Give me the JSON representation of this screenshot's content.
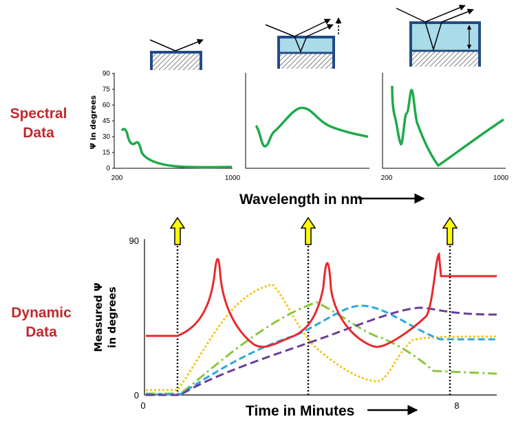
{
  "labels": {
    "spectral_line1": "Spectral",
    "spectral_line2": "Data",
    "dynamic_line1": "Dynamic",
    "dynamic_line2": "Data"
  },
  "spectral": {
    "ylabel": "Ψ in degrees",
    "xlabel": "Wavelength in nm",
    "yticks": [
      "90",
      "75",
      "60",
      "45",
      "30",
      "15",
      "0"
    ],
    "xtick_min": "200",
    "xtick_max": "1000"
  },
  "dynamic": {
    "ylabel_line1": "Measured Ψ",
    "ylabel_line2": "in degrees",
    "xlabel": "Time in Minutes",
    "ytick_top": "90",
    "ytick_bottom": "0",
    "xtick_start": "0",
    "xtick_end": "8"
  },
  "colors": {
    "spectral_curve": "#1eaa4a",
    "red": "#e8282d",
    "orange": "#f5c518",
    "green": "#8cc63e",
    "cyan": "#29a8e0",
    "purple": "#6a3d9a",
    "arrow_fill": "#ffff00",
    "film": "#a9dbe8",
    "frame": "#234a86"
  }
}
